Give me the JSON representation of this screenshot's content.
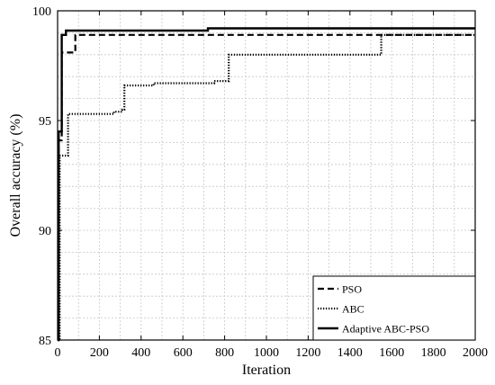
{
  "chart_data": {
    "type": "line",
    "title": "",
    "xlabel": "Iteration",
    "ylabel": "Overall accuracy (%)",
    "xlim": [
      0,
      2000
    ],
    "ylim": [
      85,
      100
    ],
    "xticks": [
      0,
      200,
      400,
      600,
      800,
      1000,
      1200,
      1400,
      1600,
      1800,
      2000
    ],
    "yticks": [
      85,
      90,
      95,
      100
    ],
    "grid": true,
    "legend_position": "bottom-right",
    "series": [
      {
        "name": "PSO",
        "style": "dashed",
        "color": "#000000",
        "x": [
          0,
          5,
          5,
          20,
          20,
          50,
          50,
          85,
          85,
          2000
        ],
        "y": [
          85,
          85,
          94.1,
          94.1,
          98.1,
          98.1,
          98.1,
          98.1,
          98.9,
          98.9
        ]
      },
      {
        "name": "ABC",
        "style": "dotted",
        "color": "#000000",
        "x": [
          0,
          10,
          10,
          20,
          20,
          50,
          50,
          270,
          270,
          310,
          310,
          320,
          320,
          460,
          460,
          480,
          480,
          750,
          750,
          820,
          820,
          1550,
          1550,
          2000
        ],
        "y": [
          85,
          85,
          93.4,
          93.4,
          93.4,
          93.4,
          95.3,
          95.3,
          95.4,
          95.4,
          95.5,
          95.5,
          96.6,
          96.6,
          96.7,
          96.7,
          96.7,
          96.7,
          96.8,
          96.8,
          98.0,
          98.0,
          98.9,
          98.9
        ]
      },
      {
        "name": "Adaptive ABC-PSO",
        "style": "solid",
        "color": "#000000",
        "x": [
          0,
          5,
          5,
          20,
          20,
          40,
          40,
          720,
          720,
          2000
        ],
        "y": [
          85,
          85,
          94.5,
          94.5,
          98.9,
          98.9,
          99.1,
          99.1,
          99.2,
          99.2
        ]
      }
    ]
  }
}
